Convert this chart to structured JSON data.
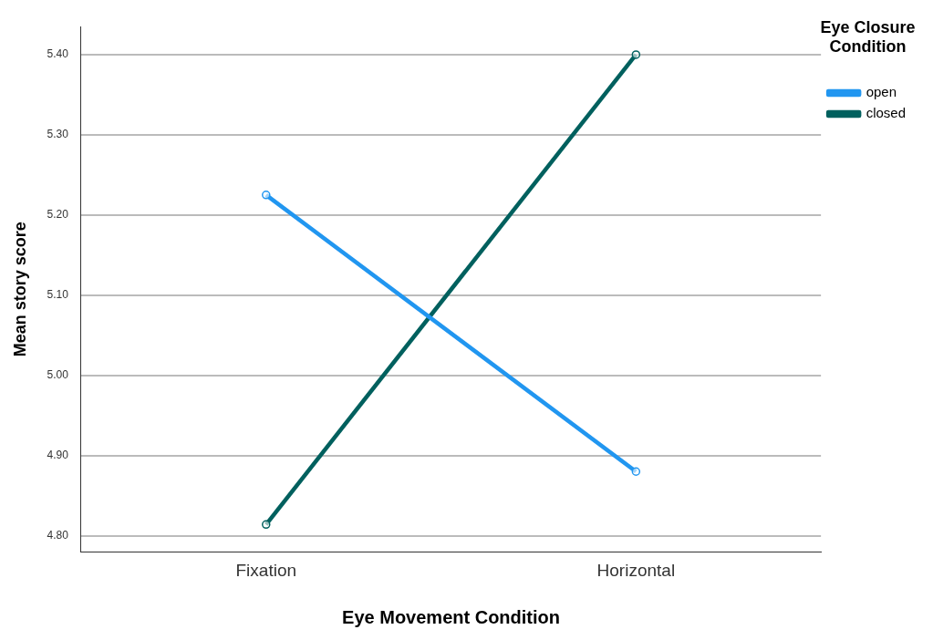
{
  "chart_data": {
    "type": "line",
    "xlabel": "Eye Movement Condition",
    "ylabel": "Mean story score",
    "legend_title": "Eye Closure Condition",
    "categories": [
      "Fixation",
      "Horizontal"
    ],
    "series": [
      {
        "name": "open",
        "color": "#2196f0",
        "values": [
          5.225,
          4.88
        ]
      },
      {
        "name": "closed",
        "color": "#00605e",
        "values": [
          4.814,
          5.4
        ]
      }
    ],
    "ylim": [
      4.78,
      5.435
    ],
    "yticks": [
      {
        "value": 4.8,
        "label": "4.80"
      },
      {
        "value": 4.9,
        "label": "4.90"
      },
      {
        "value": 5.0,
        "label": "5.00"
      },
      {
        "value": 5.1,
        "label": "5.10"
      },
      {
        "value": 5.2,
        "label": "5.20"
      },
      {
        "value": 5.3,
        "label": "5.30"
      },
      {
        "value": 5.4,
        "label": "5.40"
      }
    ],
    "grid": "y",
    "legend": "top right",
    "marker": "circle",
    "line_style": "solid"
  }
}
